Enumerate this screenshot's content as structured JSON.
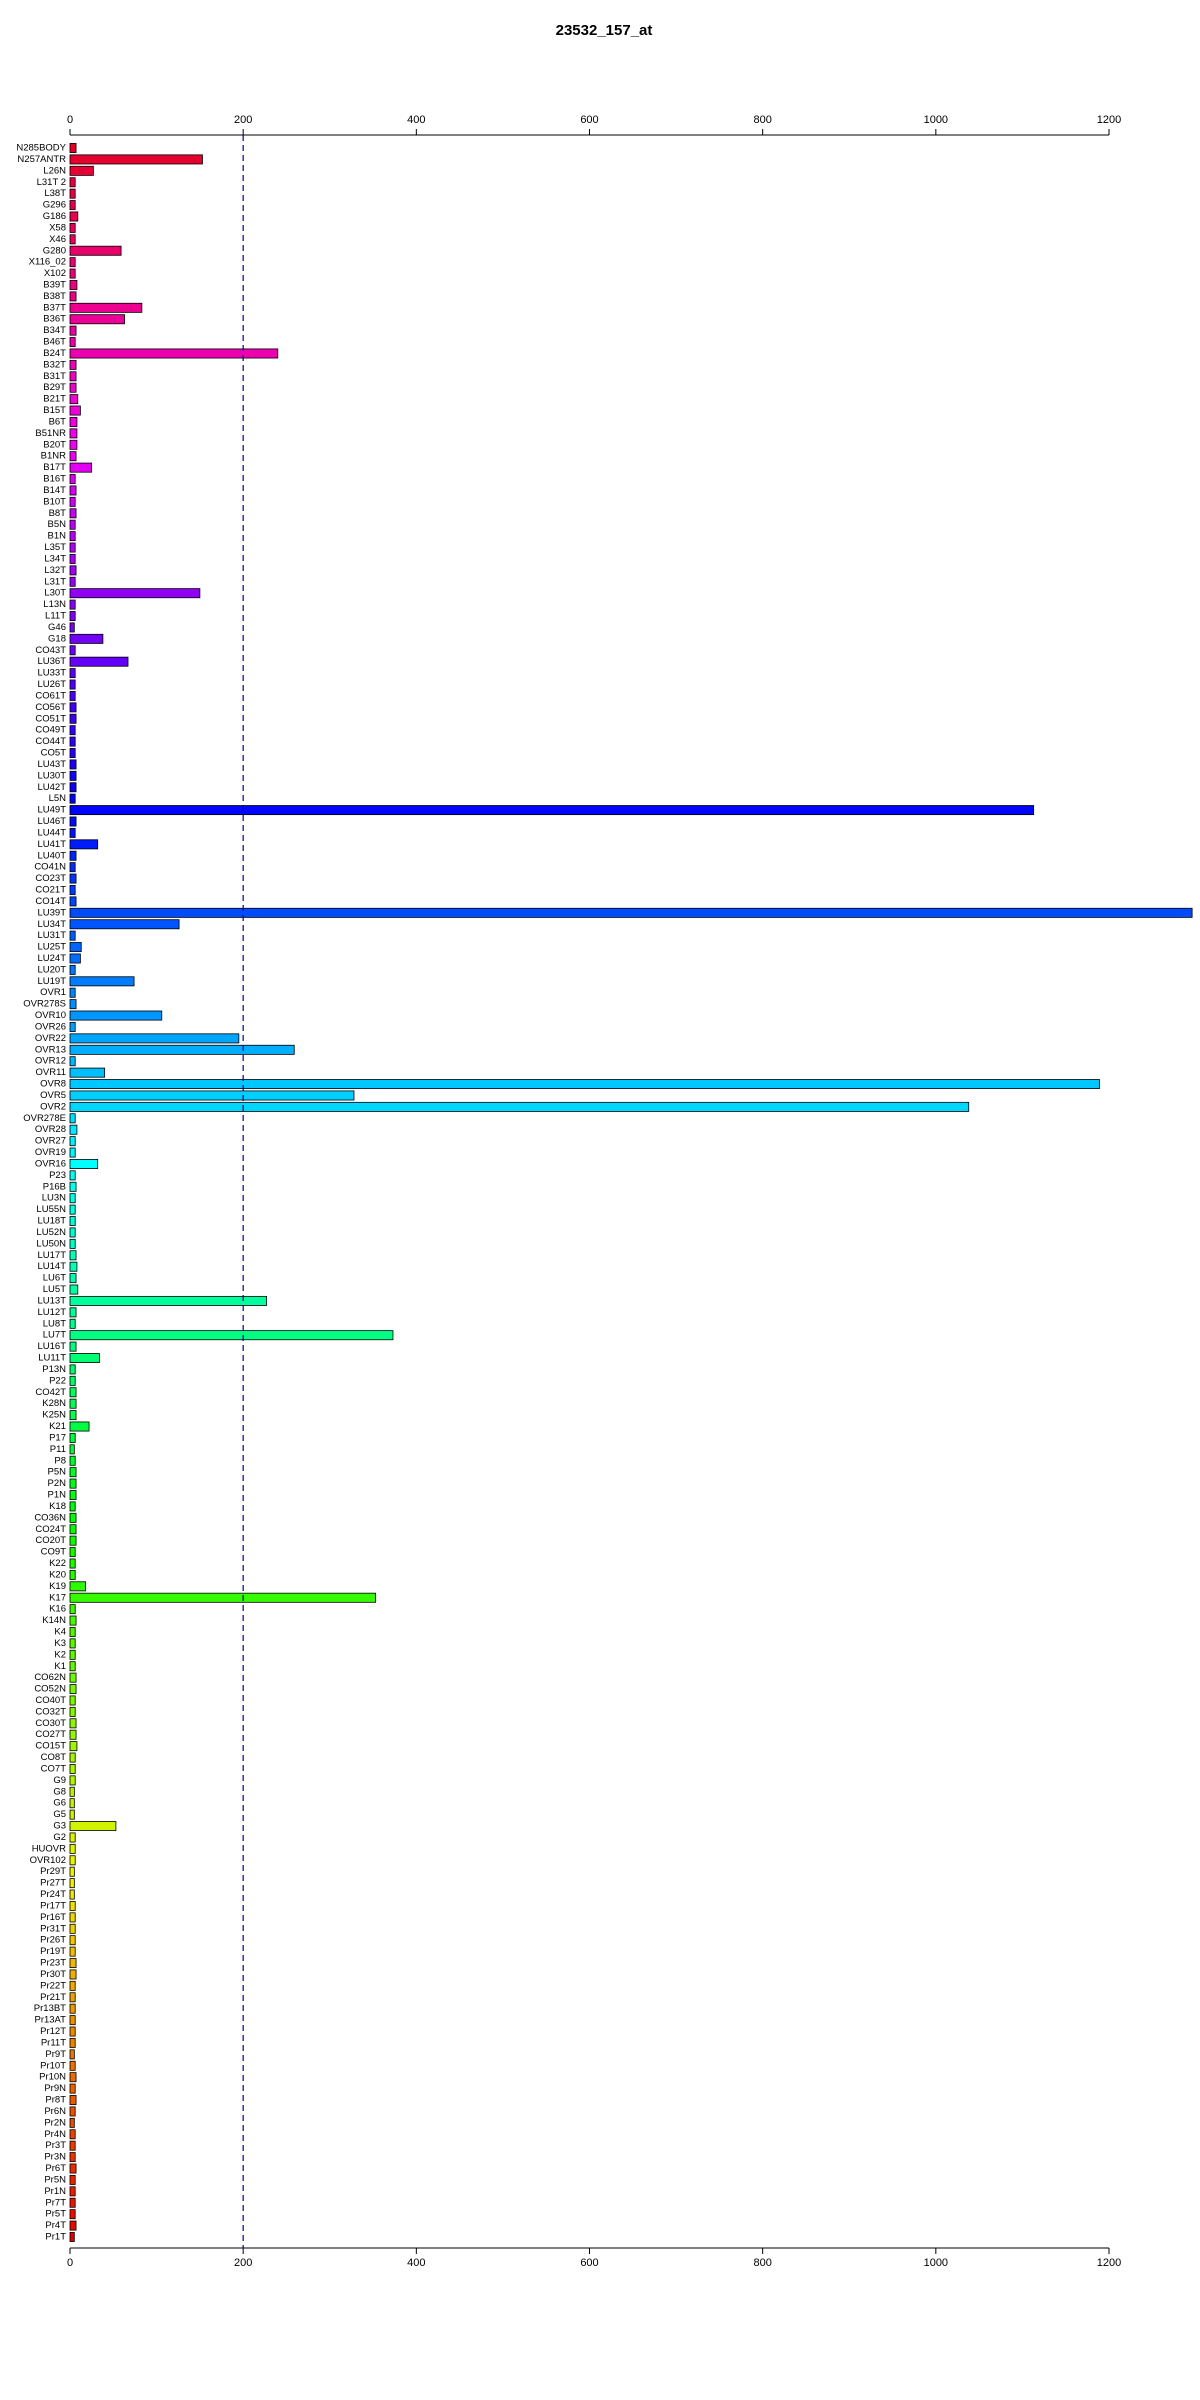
{
  "chart_data": {
    "type": "barh",
    "title": "23532_157_at",
    "categories": [
      "N285BODY",
      "N257ANTR",
      "L26N",
      "L31T 2",
      "L38T",
      "G296",
      "G186",
      "X58",
      "X46",
      "G280",
      "X116_02",
      "X102",
      "B39T",
      "B38T",
      "B37T",
      "B36T",
      "B34T",
      "B46T",
      "B24T",
      "B32T",
      "B31T",
      "B29T",
      "B21T",
      "B15T",
      "B6T",
      "B51NR",
      "B20T",
      "B1NR",
      "B17T",
      "B16T",
      "B14T",
      "B10T",
      "B8T",
      "B5N",
      "B1N",
      "L35T",
      "L34T",
      "L32T",
      "L31T",
      "L30T",
      "L13N",
      "L11T",
      "G46",
      "G18",
      "CO43T",
      "LU36T",
      "LU33T",
      "LU26T",
      "CO61T",
      "CO56T",
      "CO51T",
      "CO49T",
      "CO44T",
      "CO5T",
      "LU43T",
      "LU30T",
      "LU42T",
      "L5N",
      "LU49T",
      "LU46T",
      "LU44T",
      "LU41T",
      "LU40T",
      "CO41N",
      "CO23T",
      "CO21T",
      "CO14T",
      "LU39T",
      "LU34T",
      "LU31T",
      "LU25T",
      "LU24T",
      "LU20T",
      "LU19T",
      "OVR1",
      "OVR278S",
      "OVR10",
      "OVR26",
      "OVR22",
      "OVR13",
      "OVR12",
      "OVR11",
      "OVR8",
      "OVR5",
      "OVR2",
      "OVR278E",
      "OVR28",
      "OVR27",
      "OVR19",
      "OVR16",
      "P23",
      "P16B",
      "LU3N",
      "LU55N",
      "LU18T",
      "LU52N",
      "LU50N",
      "LU17T",
      "LU14T",
      "LU6T",
      "LU5T",
      "LU13T",
      "LU12T",
      "LU8T",
      "LU7T",
      "LU16T",
      "LU11T",
      "P13N",
      "P22",
      "CO42T",
      "K28N",
      "K25N",
      "K21",
      "P17",
      "P11",
      "P8",
      "P5N",
      "P2N",
      "P1N",
      "K18",
      "CO36N",
      "CO24T",
      "CO20T",
      "CO9T",
      "K22",
      "K20",
      "K19",
      "K17",
      "K16",
      "K14N",
      "K4",
      "K3",
      "K2",
      "K1",
      "CO62N",
      "CO52N",
      "CO40T",
      "CO32T",
      "CO30T",
      "CO27T",
      "CO15T",
      "CO8T",
      "CO7T",
      "G9",
      "G8",
      "G6",
      "G5",
      "G3",
      "G2",
      "HUOVR",
      "OVR102",
      "Pr29T",
      "Pr27T",
      "Pr24T",
      "Pr17T",
      "Pr16T",
      "Pr31T",
      "Pr26T",
      "Pr19T",
      "Pr23T",
      "Pr30T",
      "Pr22T",
      "Pr21T",
      "Pr13BT",
      "Pr13AT",
      "Pr12T",
      "Pr11T",
      "Pr9T",
      "Pr10T",
      "Pr10N",
      "Pr9N",
      "Pr8T",
      "Pr6N",
      "Pr2N",
      "Pr4N",
      "Pr3T",
      "Pr3N",
      "Pr6T",
      "Pr5N",
      "Pr1N",
      "Pr7T",
      "Pr5T",
      "Pr4T",
      "Pr1T"
    ],
    "values": [
      7,
      153,
      27,
      6,
      6,
      6,
      9,
      6,
      6,
      59,
      6,
      6,
      8,
      7,
      83,
      63,
      7,
      6,
      240,
      7,
      7,
      7,
      9,
      12,
      8,
      8,
      8,
      7,
      25,
      6,
      7,
      6,
      7,
      6,
      6,
      6,
      6,
      7,
      6,
      150,
      6,
      6,
      5,
      38,
      6,
      67,
      6,
      6,
      6,
      7,
      7,
      6,
      6,
      6,
      7,
      7,
      7,
      6,
      1113,
      7,
      6,
      32,
      7,
      6,
      7,
      6,
      7,
      1296,
      126,
      6,
      13,
      12,
      6,
      74,
      6,
      7,
      106,
      6,
      195,
      259,
      6,
      40,
      1189,
      328,
      1038,
      6,
      8,
      6,
      6,
      32,
      6,
      7,
      6,
      6,
      6,
      6,
      6,
      7,
      8,
      7,
      9,
      227,
      7,
      6,
      373,
      7,
      34,
      6,
      6,
      7,
      7,
      7,
      22,
      6,
      5,
      6,
      7,
      7,
      7,
      6,
      7,
      7,
      7,
      6,
      6,
      6,
      18,
      353,
      6,
      7,
      6,
      6,
      6,
      6,
      7,
      7,
      6,
      6,
      7,
      7,
      8,
      6,
      6,
      6,
      5,
      5,
      5,
      53,
      6,
      6,
      6,
      5,
      5,
      5,
      6,
      6,
      6,
      6,
      6,
      7,
      7,
      6,
      6,
      6,
      6,
      6,
      6,
      5,
      6,
      7,
      6,
      7,
      6,
      5,
      6,
      6,
      6,
      7,
      6,
      6,
      6,
      6,
      7,
      5
    ],
    "colormap": "rainbow",
    "xlim": [
      0,
      1200
    ],
    "xticks": [
      0,
      200,
      400,
      600,
      800,
      1000,
      1200
    ],
    "reference_line": 200,
    "reference_color": "#00008b"
  }
}
